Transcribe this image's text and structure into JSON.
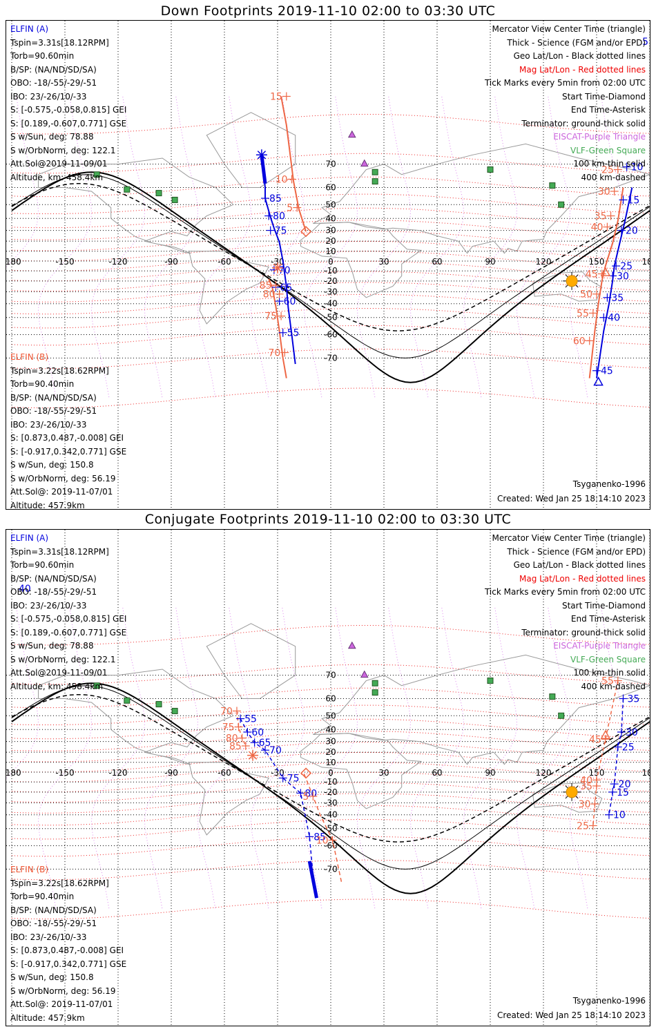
{
  "panels": [
    {
      "title": "Down Footprints 2019-11-10 02:00 to 03:30 UTC",
      "elfin_a": {
        "name": "ELFIN (A)",
        "lines": [
          "Tspin=3.31s[18.12RPM]",
          "Torb=90.60min",
          "B/SP: (NA/ND/SD/SA)",
          "OBO: -18/-55/-29/-51",
          "IBO: 23/-26/10/-33",
          "S: [-0.575,-0.058,0.815] GEI",
          "S: [0.189,-0.607,0.771] GSE",
          "S w/Sun, deg: 78.88",
          "S w/OrbNorm, deg: 122.1",
          "Att.Sol@2019-11-09/01",
          "Altitude, km: 458.4km"
        ]
      },
      "elfin_b": {
        "name": "ELFIN (B)",
        "lines": [
          "Tspin=3.22s[18.62RPM]",
          "Torb=90.40min",
          "B/SP: (NA/ND/SD/SA)",
          "OBO: -18/-55/-29/-51",
          "IBO: 23/-26/10/-33",
          "S: [0.873,0.487,-0.008] GEI",
          "S: [-0.917,0.342,0.771] GSE",
          "S w/Sun, deg: 150.8",
          "S w/OrbNorm, deg: 56.19",
          "Att.Sol@: 2019-11-07/01",
          "Altitude: 457.9km"
        ]
      },
      "model": "Tsyganenko-1996",
      "created": "Created: Wed Jan 25 18:14:10 2023",
      "track_a": [
        [
          -39,
          73
        ],
        [
          -37,
          60
        ],
        [
          -37,
          54
        ],
        [
          -34,
          41
        ],
        [
          -32,
          32
        ],
        [
          -29,
          19
        ],
        [
          -27,
          0
        ],
        [
          -25,
          -25
        ],
        [
          -24,
          -43
        ],
        [
          -22,
          -60
        ],
        [
          -20,
          -72
        ]
      ],
      "track_a_ticks": [
        {
          "lon": -37,
          "lat": 54,
          "label": "85"
        },
        {
          "lon": -35,
          "lat": 42,
          "label": "80"
        },
        {
          "lon": -34,
          "lat": 30,
          "label": "75"
        },
        {
          "lon": -32,
          "lat": -9,
          "label": "70"
        },
        {
          "lon": -31,
          "lat": -26,
          "label": "65"
        },
        {
          "lon": -29,
          "lat": -38,
          "label": "60"
        },
        {
          "lon": -27,
          "lat": -59,
          "label": "55"
        }
      ],
      "track_a_start": [
        -31,
        -7
      ],
      "track_a_end": [
        -39,
        73
      ],
      "track_b": [
        [
          -35,
          -18
        ],
        [
          -33,
          -26
        ],
        [
          -31,
          -42
        ],
        [
          -29,
          -58
        ],
        [
          -27,
          -70
        ],
        [
          -25,
          -76
        ]
      ],
      "track_b_pre": [
        [
          -28,
          96
        ],
        [
          -25,
          80
        ],
        [
          -21,
          63
        ],
        [
          -18,
          47
        ],
        [
          -14,
          29
        ]
      ],
      "track_b_ticks": [
        {
          "lon": -31,
          "lat": -24,
          "label": "85"
        },
        {
          "lon": -29,
          "lat": -32,
          "label": "80"
        },
        {
          "lon": -28,
          "lat": -49,
          "label": "75"
        },
        {
          "lon": -26,
          "lat": -68,
          "label": "70"
        },
        {
          "lon": -25,
          "lat": 84,
          "label": "15"
        },
        {
          "lon": -22,
          "lat": 64,
          "label": "10"
        },
        {
          "lon": -19,
          "lat": 48,
          "label": "5"
        }
      ],
      "track_b_start_diamond": [
        -14,
        29
      ],
      "track_b_start_asterisk": [
        -30,
        -7
      ],
      "east_a": [
        [
          150,
          -76
        ],
        [
          154,
          -58
        ],
        [
          157,
          -40
        ],
        [
          159,
          -20
        ],
        [
          160,
          -5
        ],
        [
          163,
          18
        ],
        [
          166,
          38
        ],
        [
          170,
          60
        ]
      ],
      "east_a_ticks": [
        {
          "lon": 167,
          "lat": 69,
          "label": "10"
        },
        {
          "lon": 165,
          "lat": 53,
          "label": "15"
        },
        {
          "lon": 164,
          "lat": 30,
          "label": "20"
        },
        {
          "lon": 161,
          "lat": -5,
          "label": "25"
        },
        {
          "lon": 159,
          "lat": -15,
          "label": "30"
        },
        {
          "lon": 156,
          "lat": -35,
          "label": "35"
        },
        {
          "lon": 154,
          "lat": -50,
          "label": "40"
        },
        {
          "lon": 150,
          "lat": -74,
          "label": "45"
        }
      ],
      "east_b": [
        [
          146,
          -76
        ],
        [
          149,
          -58
        ],
        [
          151,
          -40
        ],
        [
          153,
          -20
        ],
        [
          155,
          -5
        ],
        [
          159,
          18
        ],
        [
          162,
          38
        ],
        [
          165,
          60
        ]
      ],
      "east_b_ticks": [
        {
          "lon": 162,
          "lat": 68,
          "label": "25"
        },
        {
          "lon": 160,
          "lat": 58,
          "label": "30"
        },
        {
          "lon": 158,
          "lat": 42,
          "label": "35"
        },
        {
          "lon": 156,
          "lat": 33,
          "label": "40"
        },
        {
          "lon": 153,
          "lat": -13,
          "label": "45"
        },
        {
          "lon": 150,
          "lat": -32,
          "label": "50"
        },
        {
          "lon": 148,
          "lat": -47,
          "label": "55"
        },
        {
          "lon": 146,
          "lat": -63,
          "label": "60"
        }
      ],
      "east_a_triangle": [
        151,
        -77
      ],
      "east_b_triangle": [
        155,
        -12
      ],
      "extra_top_label": "5"
    },
    {
      "title": "Conjugate Footprints 2019-11-10 02:00 to 03:30 UTC",
      "elfin_a": {
        "name": "ELFIN (A)",
        "lines": [
          "Tspin=3.31s[18.12RPM]",
          "Torb=90.60min",
          "B/SP: (NA/ND/SD/SA)",
          "OBO: -18/-55/-29/-51",
          "IBO: 23/-26/10/-33",
          "S: [-0.575,-0.058,0.815] GEI",
          "S: [0.189,-0.607,0.771] GSE",
          "S w/Sun, deg: 78.88",
          "S w/OrbNorm, deg: 122.1",
          "Att.Sol@2019-11-09/01",
          "Altitude, km: 458.4km"
        ]
      },
      "elfin_b": {
        "name": "ELFIN (B)",
        "lines": [
          "Tspin=3.22s[18.62RPM]",
          "Torb=90.40min",
          "B/SP: (NA/ND/SD/SA)",
          "OBO: -18/-55/-29/-51",
          "IBO: 23/-26/10/-33",
          "S: [0.873,0.487,-0.008] GEI",
          "S: [-0.917,0.342,0.771] GSE",
          "S w/Sun, deg: 150.8",
          "S w/OrbNorm, deg: 56.19",
          "Att.Sol@: 2019-11-07/01",
          "Altitude: 457.9km"
        ]
      },
      "model": "Tsyganenko-1996",
      "created": "Created: Wed Jan 25 18:14:10 2023",
      "conj_a_ticks": [
        {
          "lon": -51,
          "lat": 48,
          "label": "55"
        },
        {
          "lon": -47,
          "lat": 38,
          "label": "60"
        },
        {
          "lon": -43,
          "lat": 29,
          "label": "65"
        },
        {
          "lon": -37,
          "lat": 22,
          "label": "70"
        },
        {
          "lon": -27,
          "lat": -6,
          "label": "75"
        },
        {
          "lon": -17,
          "lat": -21,
          "label": "80"
        },
        {
          "lon": -12,
          "lat": -55,
          "label": "85"
        }
      ],
      "conj_b_ticks": [
        {
          "lon": -53,
          "lat": 53,
          "label": "70"
        },
        {
          "lon": -52,
          "lat": 42,
          "label": "75"
        },
        {
          "lon": -50,
          "lat": 33,
          "label": "80"
        },
        {
          "lon": -48,
          "lat": 26,
          "label": "85"
        },
        {
          "lon": -10,
          "lat": -24,
          "label": "5"
        },
        {
          "lon": 1,
          "lat": -57,
          "label": "10"
        }
      ],
      "conj_east_a_ticks": [
        {
          "lon": 165,
          "lat": 60,
          "label": "35"
        },
        {
          "lon": 164,
          "lat": 38,
          "label": "30"
        },
        {
          "lon": 162,
          "lat": 25,
          "label": "25"
        },
        {
          "lon": 160,
          "lat": -12,
          "label": "20"
        },
        {
          "lon": 159,
          "lat": -20,
          "label": "15"
        },
        {
          "lon": 157,
          "lat": -40,
          "label": "10"
        }
      ],
      "conj_east_b_ticks": [
        {
          "lon": 162,
          "lat": 68,
          "label": "55"
        },
        {
          "lon": 155,
          "lat": 32,
          "label": "45"
        },
        {
          "lon": 150,
          "lat": -8,
          "label": "40"
        },
        {
          "lon": 150,
          "lat": -14,
          "label": "35"
        },
        {
          "lon": 149,
          "lat": -31,
          "label": "30"
        },
        {
          "lon": 148,
          "lat": -48,
          "label": "25"
        }
      ],
      "extra_top_label": "40"
    }
  ],
  "legend_right": [
    {
      "text": "Mercator View Center Time (triangle)",
      "color": "#000000"
    },
    {
      "text": "Thick - Science (FGM and/or EPD)",
      "color": "#000000"
    },
    {
      "text": "Geo Lat/Lon - Black dotted lines",
      "color": "#000000"
    },
    {
      "text": "Mag Lat/Lon - Red dotted lines",
      "color": "#ee0000"
    },
    {
      "text": "Tick Marks every 5min from 02:00 UTC",
      "color": "#000000"
    },
    {
      "text": "Start Time-Diamond",
      "color": "#000000"
    },
    {
      "text": "End Time-Asterisk",
      "color": "#000000"
    },
    {
      "text": "Terminator: ground-thick solid",
      "color": "#000000"
    },
    {
      "text": "EISCAT-Purple Triangle",
      "color": "#cc66dd"
    },
    {
      "text": "VLF-Green Square",
      "color": "#44aa55"
    },
    {
      "text": "100 km-thin solid",
      "color": "#000000"
    },
    {
      "text": "400 km-dashed",
      "color": "#000000"
    }
  ],
  "lon_labels": [
    "-180",
    "-150",
    "-120",
    "-90",
    "-60",
    "-30",
    "0",
    "30",
    "60",
    "90",
    "120",
    "150",
    "180"
  ],
  "lat_labels": [
    "70",
    "60",
    "50",
    "40",
    "30",
    "20",
    "10",
    "-10",
    "-20",
    "-30",
    "-40",
    "-50",
    "-60",
    "-70"
  ],
  "colors": {
    "elfin_a": "#0000dd",
    "elfin_b": "#ee6644",
    "mag_grid": "#ee2222",
    "geo_grid": "#000000",
    "eiscat": "#cc66dd",
    "vlf": "#44aa55",
    "sun": "#ffaa00",
    "coast": "#999999"
  }
}
